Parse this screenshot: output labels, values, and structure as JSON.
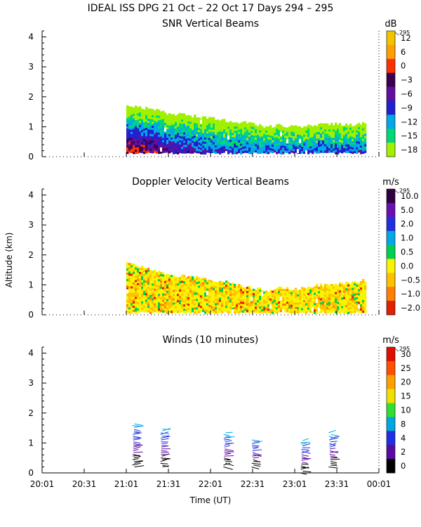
{
  "header": {
    "title": "IDEAL ISS DPG  21 Oct – 22 Oct 17 Days 294 – 295"
  },
  "shared": {
    "ylabel": "Altitude (km)",
    "xlabel": "Time (UT)",
    "x_ticks": [
      "20:01",
      "20:31",
      "21:01",
      "21:31",
      "22:01",
      "22:31",
      "23:01",
      "23:31",
      "00:01"
    ],
    "y_ticks": [
      "0",
      "1",
      "2",
      "3",
      "4"
    ]
  },
  "chart_data": [
    {
      "type": "heatmap",
      "title": "SNR Vertical Beams",
      "ylabel": "Altitude (km)",
      "xlabel": "",
      "xlim": [
        "20:01",
        "00:01"
      ],
      "ylim": [
        0,
        4.2
      ],
      "colorbar": {
        "unit": "dB",
        "tag": "295",
        "labels": [
          "12",
          "6",
          "0",
          "−3",
          "−6",
          "−9",
          "−12",
          "−15",
          "−18"
        ],
        "colors": [
          "#f2c400",
          "#ff9f00",
          "#ff3000",
          "#3c0050",
          "#6010a0",
          "#2020d0",
          "#00a8e8",
          "#00d878",
          "#a0f000"
        ]
      },
      "profile": {
        "times": [
          "21:01",
          "21:11",
          "21:21",
          "21:31",
          "21:41",
          "21:51",
          "22:01",
          "22:11",
          "22:21",
          "22:31",
          "22:41",
          "22:51",
          "23:01",
          "23:11",
          "23:21",
          "23:31",
          "23:41",
          "23:51"
        ],
        "top_km": [
          1.7,
          1.65,
          1.55,
          1.45,
          1.4,
          1.35,
          1.3,
          1.2,
          1.15,
          1.1,
          1.0,
          1.05,
          1.0,
          1.05,
          1.1,
          1.1,
          1.05,
          1.15
        ],
        "bottom_km": 0.15
      }
    },
    {
      "type": "heatmap",
      "title": "Doppler Velocity Vertical Beams",
      "ylabel": "Altitude (km)",
      "xlabel": "",
      "xlim": [
        "20:01",
        "00:01"
      ],
      "ylim": [
        0,
        4.2
      ],
      "colorbar": {
        "unit": "m/s",
        "tag": "295",
        "labels": [
          "10.0",
          "5.0",
          "2.0",
          "1.0",
          "0.5",
          "0.0",
          "−0.5",
          "−1.0",
          "−2.0"
        ],
        "colors": [
          "#300040",
          "#6a10b0",
          "#2030e0",
          "#00a8e8",
          "#00d050",
          "#f8f400",
          "#ffc000",
          "#ff8000",
          "#e02000"
        ]
      },
      "profile": {
        "times": [
          "21:01",
          "21:11",
          "21:21",
          "21:31",
          "21:41",
          "21:51",
          "22:01",
          "22:11",
          "22:21",
          "22:31",
          "22:41",
          "22:51",
          "23:01",
          "23:11",
          "23:21",
          "23:31",
          "23:41",
          "23:51"
        ],
        "top_km": [
          1.7,
          1.6,
          1.45,
          1.35,
          1.3,
          1.25,
          1.15,
          1.1,
          1.0,
          0.9,
          0.8,
          0.9,
          0.85,
          0.95,
          1.0,
          1.05,
          1.1,
          1.15
        ],
        "bottom_km": 0.1
      }
    },
    {
      "type": "scatter",
      "title": "Winds (10 minutes)",
      "ylabel": "Altitude (km)",
      "xlabel": "Time (UT)",
      "xlim": [
        "20:01",
        "00:01"
      ],
      "ylim": [
        0,
        4.2
      ],
      "colorbar": {
        "unit": "m/s",
        "tag": "295",
        "labels": [
          "30",
          "25",
          "20",
          "15",
          "10",
          "8",
          "4",
          "2",
          "0"
        ],
        "colors": [
          "#e01000",
          "#ff5000",
          "#ffa000",
          "#f0e000",
          "#30e030",
          "#00a8e0",
          "#2030e0",
          "#5a0aa0",
          "#000000"
        ]
      },
      "profiles": [
        {
          "time": "21:06",
          "base_km": 0.2,
          "top_km": 1.7
        },
        {
          "time": "21:26",
          "base_km": 0.2,
          "top_km": 1.5
        },
        {
          "time": "22:11",
          "base_km": 0.2,
          "top_km": 1.35
        },
        {
          "time": "22:31",
          "base_km": 0.2,
          "top_km": 1.15
        },
        {
          "time": "23:06",
          "base_km": 0.0,
          "top_km": 1.1
        },
        {
          "time": "23:26",
          "base_km": 0.2,
          "top_km": 1.35
        }
      ]
    }
  ]
}
